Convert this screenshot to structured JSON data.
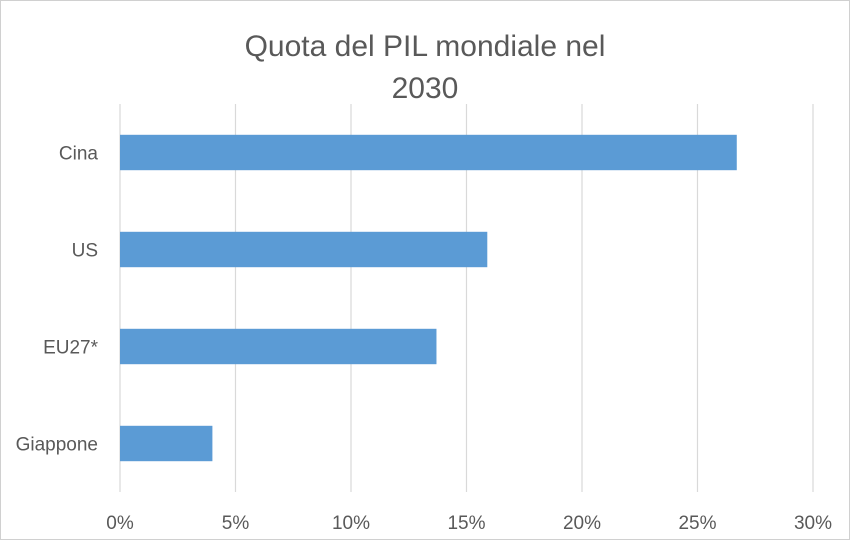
{
  "chart_data": {
    "type": "bar",
    "orientation": "horizontal",
    "title": [
      "Quota del PIL mondiale nel",
      "2030"
    ],
    "categories": [
      "Cina",
      "US",
      "EU27*",
      "Giappone"
    ],
    "values": [
      26.7,
      15.9,
      13.7,
      4.0
    ],
    "value_unit": "%",
    "xlim": [
      0,
      30
    ],
    "x_ticks": [
      0,
      5,
      10,
      15,
      20,
      25,
      30
    ],
    "x_tick_labels": [
      "0%",
      "5%",
      "10%",
      "15%",
      "20%",
      "25%",
      "30%"
    ],
    "grid": "vertical",
    "legend": "none",
    "bar_color": "#5b9bd5"
  }
}
